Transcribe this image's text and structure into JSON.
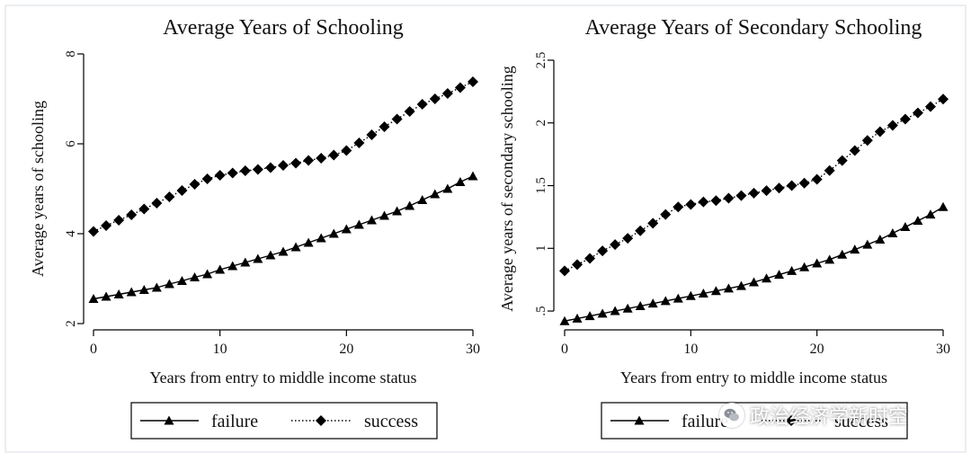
{
  "chart_data": [
    {
      "type": "line",
      "title": "Average Years of Schooling",
      "xlabel": "Years from entry to middle income status",
      "ylabel": "Average years of schooling",
      "xlim": [
        0,
        30
      ],
      "ylim": [
        2,
        8
      ],
      "xticks": [
        0,
        10,
        20,
        30
      ],
      "xtick_labels": [
        "0",
        "10",
        "20",
        "30"
      ],
      "yticks": [
        2,
        4,
        6,
        8
      ],
      "ytick_labels": [
        "2",
        "4",
        "6",
        "8"
      ],
      "legend": {
        "position": "bottom",
        "entries": [
          "failure",
          "success"
        ]
      },
      "x": [
        0,
        1,
        2,
        3,
        4,
        5,
        6,
        7,
        8,
        9,
        10,
        11,
        12,
        13,
        14,
        15,
        16,
        17,
        18,
        19,
        20,
        21,
        22,
        23,
        24,
        25,
        26,
        27,
        28,
        29,
        30
      ],
      "series": [
        {
          "name": "failure",
          "marker": "triangle",
          "line": "solid",
          "values": [
            2.55,
            2.6,
            2.65,
            2.7,
            2.75,
            2.8,
            2.88,
            2.95,
            3.03,
            3.1,
            3.2,
            3.28,
            3.36,
            3.44,
            3.52,
            3.6,
            3.7,
            3.8,
            3.9,
            4.0,
            4.1,
            4.2,
            4.3,
            4.4,
            4.5,
            4.62,
            4.75,
            4.88,
            5.0,
            5.15,
            5.28
          ]
        },
        {
          "name": "success",
          "marker": "diamond",
          "line": "dotted",
          "values": [
            4.05,
            4.18,
            4.3,
            4.42,
            4.55,
            4.68,
            4.82,
            4.96,
            5.1,
            5.22,
            5.3,
            5.35,
            5.4,
            5.43,
            5.47,
            5.52,
            5.57,
            5.63,
            5.68,
            5.75,
            5.85,
            6.02,
            6.2,
            6.38,
            6.55,
            6.72,
            6.88,
            7.0,
            7.12,
            7.25,
            7.38
          ]
        }
      ]
    },
    {
      "type": "line",
      "title": "Average Years of Secondary Schooling",
      "xlabel": "Years from entry to middle income status",
      "ylabel": "Average years of secondary schooling",
      "xlim": [
        0,
        30
      ],
      "ylim": [
        0.4,
        2.55
      ],
      "xticks": [
        0,
        10,
        20,
        30
      ],
      "xtick_labels": [
        "0",
        "10",
        "20",
        "30"
      ],
      "yticks": [
        0.5,
        1,
        1.5,
        2,
        2.5
      ],
      "ytick_labels": [
        ".5",
        "1",
        "1.5",
        "2",
        "2.5"
      ],
      "legend": {
        "position": "bottom",
        "entries": [
          "failure",
          "success"
        ]
      },
      "x": [
        0,
        1,
        2,
        3,
        4,
        5,
        6,
        7,
        8,
        9,
        10,
        11,
        12,
        13,
        14,
        15,
        16,
        17,
        18,
        19,
        20,
        21,
        22,
        23,
        24,
        25,
        26,
        27,
        28,
        29,
        30
      ],
      "series": [
        {
          "name": "failure",
          "marker": "triangle",
          "line": "solid",
          "values": [
            0.42,
            0.44,
            0.46,
            0.48,
            0.5,
            0.52,
            0.54,
            0.56,
            0.58,
            0.6,
            0.62,
            0.64,
            0.66,
            0.68,
            0.7,
            0.73,
            0.76,
            0.79,
            0.82,
            0.85,
            0.88,
            0.91,
            0.95,
            0.99,
            1.03,
            1.07,
            1.12,
            1.17,
            1.22,
            1.27,
            1.33
          ]
        },
        {
          "name": "success",
          "marker": "diamond",
          "line": "dotted",
          "values": [
            0.82,
            0.87,
            0.92,
            0.98,
            1.03,
            1.08,
            1.14,
            1.2,
            1.27,
            1.33,
            1.35,
            1.37,
            1.38,
            1.4,
            1.42,
            1.44,
            1.46,
            1.48,
            1.5,
            1.52,
            1.55,
            1.62,
            1.7,
            1.78,
            1.86,
            1.93,
            1.98,
            2.03,
            2.08,
            2.13,
            2.19
          ]
        }
      ]
    }
  ],
  "watermark": {
    "text": "政治经济学新时空",
    "icon": "wechat-icon"
  }
}
